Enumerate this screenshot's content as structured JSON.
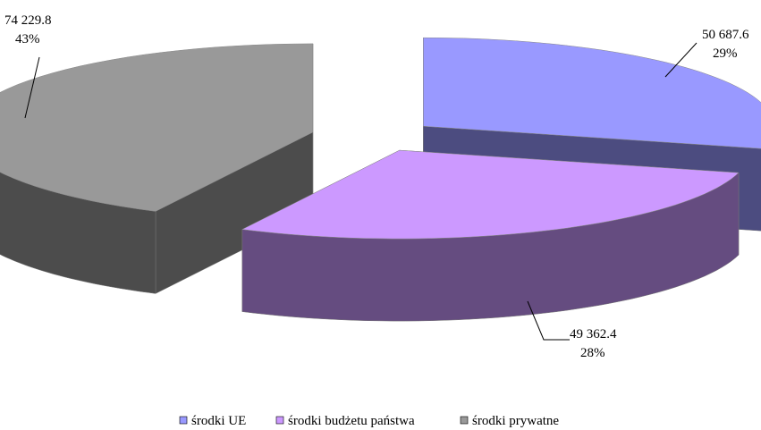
{
  "chart_data": {
    "type": "pie",
    "style": "3d-exploded",
    "title": "",
    "categories": [
      "środki UE",
      "środki budżetu państwa",
      "środki prywatne"
    ],
    "values": [
      50687.6,
      49362.4,
      74229.8
    ],
    "value_labels": [
      "50 687.6",
      "49 362.4",
      "74 229.8"
    ],
    "percent_labels": [
      "29%",
      "28%",
      "43%"
    ],
    "colors": {
      "top": [
        "#9999ff",
        "#cc99ff",
        "#999999"
      ],
      "side": [
        "#4c4c80",
        "#654c80",
        "#4c4c4c"
      ]
    },
    "legend": {
      "position": "bottom",
      "entries": [
        "środki UE",
        "środki budżetu państwa",
        "środki prywatne"
      ]
    }
  }
}
